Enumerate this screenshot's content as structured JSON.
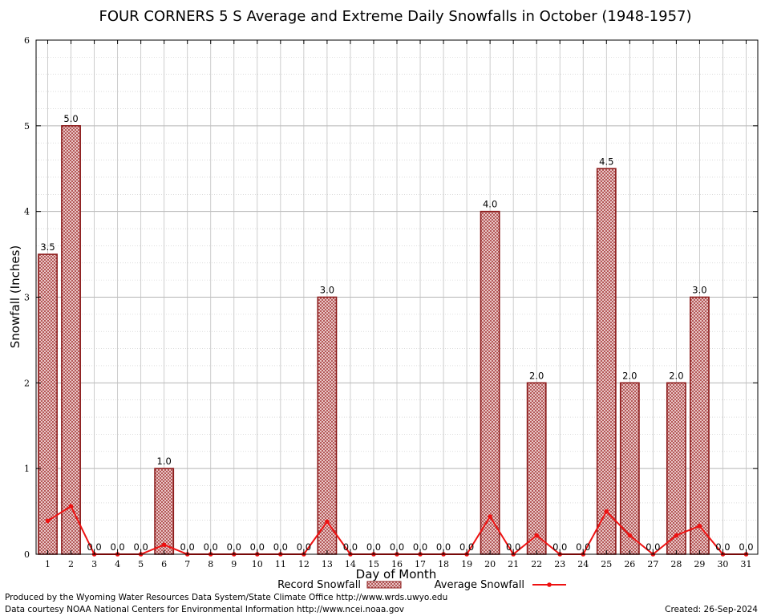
{
  "chart_data": {
    "type": "bar",
    "title": "FOUR CORNERS 5 S Average and Extreme Daily Snowfalls in October (1948-1957)",
    "xlabel": "Day of Month",
    "ylabel": "Snowfall (Inches)",
    "ylim": [
      0,
      6
    ],
    "yticks": [
      "0",
      "1",
      "2",
      "3",
      "4",
      "5",
      "6"
    ],
    "categories": [
      "1",
      "2",
      "3",
      "4",
      "5",
      "6",
      "7",
      "8",
      "9",
      "10",
      "11",
      "12",
      "13",
      "14",
      "15",
      "16",
      "17",
      "18",
      "19",
      "20",
      "21",
      "22",
      "23",
      "24",
      "25",
      "26",
      "27",
      "28",
      "29",
      "30",
      "31"
    ],
    "series": [
      {
        "name": "Record Snowfall",
        "kind": "bar",
        "color": "#b22222",
        "values": [
          3.5,
          5.0,
          0.0,
          0.0,
          0.0,
          1.0,
          0.0,
          0.0,
          0.0,
          0.0,
          0.0,
          0.0,
          3.0,
          0.0,
          0.0,
          0.0,
          0.0,
          0.0,
          0.0,
          4.0,
          0.0,
          2.0,
          0.0,
          0.0,
          4.5,
          2.0,
          0.0,
          2.0,
          3.0,
          0.0,
          0.0
        ],
        "labels": [
          "3.5",
          "5.0",
          "0.0",
          "0.0",
          "0.0",
          "1.0",
          "0.0",
          "0.0",
          "0.0",
          "0.0",
          "0.0",
          "0.0",
          "3.0",
          "0.0",
          "0.0",
          "0.0",
          "0.0",
          "0.0",
          "0.0",
          "4.0",
          "0.0",
          "2.0",
          "0.0",
          "0.0",
          "4.5",
          "2.0",
          "0.0",
          "2.0",
          "3.0",
          "0.0",
          "0.0"
        ]
      },
      {
        "name": "Average Snowfall",
        "kind": "line",
        "color": "#ee1111",
        "values": [
          0.39,
          0.56,
          0.0,
          0.0,
          0.0,
          0.11,
          0.0,
          0.0,
          0.0,
          0.0,
          0.0,
          0.0,
          0.38,
          0.0,
          0.0,
          0.0,
          0.0,
          0.0,
          0.0,
          0.44,
          0.0,
          0.22,
          0.0,
          0.0,
          0.5,
          0.22,
          0.0,
          0.22,
          0.33,
          0.0,
          0.0
        ]
      }
    ],
    "grid": true,
    "legend": "bottom"
  },
  "footer": {
    "produced_by": "Produced by the Wyoming Water Resources Data System/State Climate Office http://www.wrds.uwyo.edu",
    "courtesy": "Data courtesy NOAA National Centers for Environmental Information http://www.ncei.noaa.gov",
    "created": "Created:  26-Sep-2024"
  }
}
